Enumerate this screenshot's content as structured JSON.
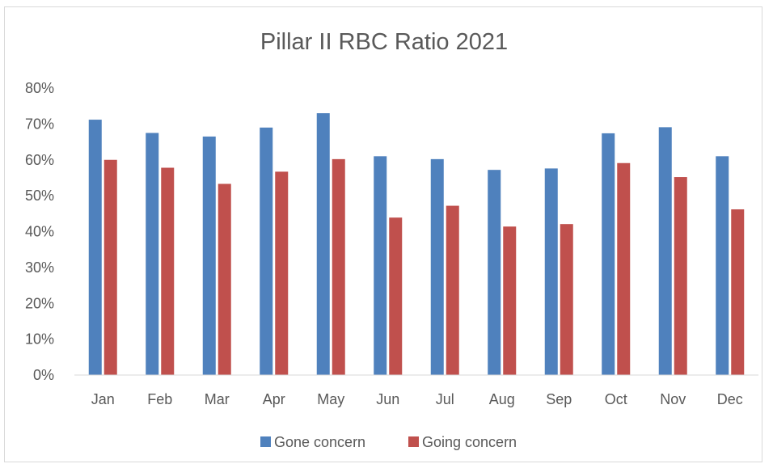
{
  "chart_data": {
    "type": "bar",
    "title": "Pillar II RBC Ratio 2021",
    "xlabel": "",
    "ylabel": "",
    "ylim": [
      0,
      80
    ],
    "y_ticks": [
      "0%",
      "10%",
      "20%",
      "30%",
      "40%",
      "50%",
      "60%",
      "70%",
      "80%"
    ],
    "y_tick_values": [
      0,
      10,
      20,
      30,
      40,
      50,
      60,
      70,
      80
    ],
    "categories": [
      "Jan",
      "Feb",
      "Mar",
      "Apr",
      "May",
      "Jun",
      "Jul",
      "Aug",
      "Sep",
      "Oct",
      "Nov",
      "Dec"
    ],
    "series": [
      {
        "name": "Gone concern",
        "color": "#4f81bd",
        "values": [
          71.2,
          67.5,
          66.5,
          69.0,
          73.0,
          61.0,
          60.2,
          57.2,
          57.6,
          67.4,
          69.1,
          61.0
        ]
      },
      {
        "name": "Going concern",
        "color": "#c0504d",
        "values": [
          60.0,
          57.8,
          53.3,
          56.7,
          60.2,
          43.9,
          47.2,
          41.4,
          42.1,
          59.1,
          55.2,
          46.2
        ]
      }
    ],
    "grid": false,
    "legend": "bottom"
  }
}
